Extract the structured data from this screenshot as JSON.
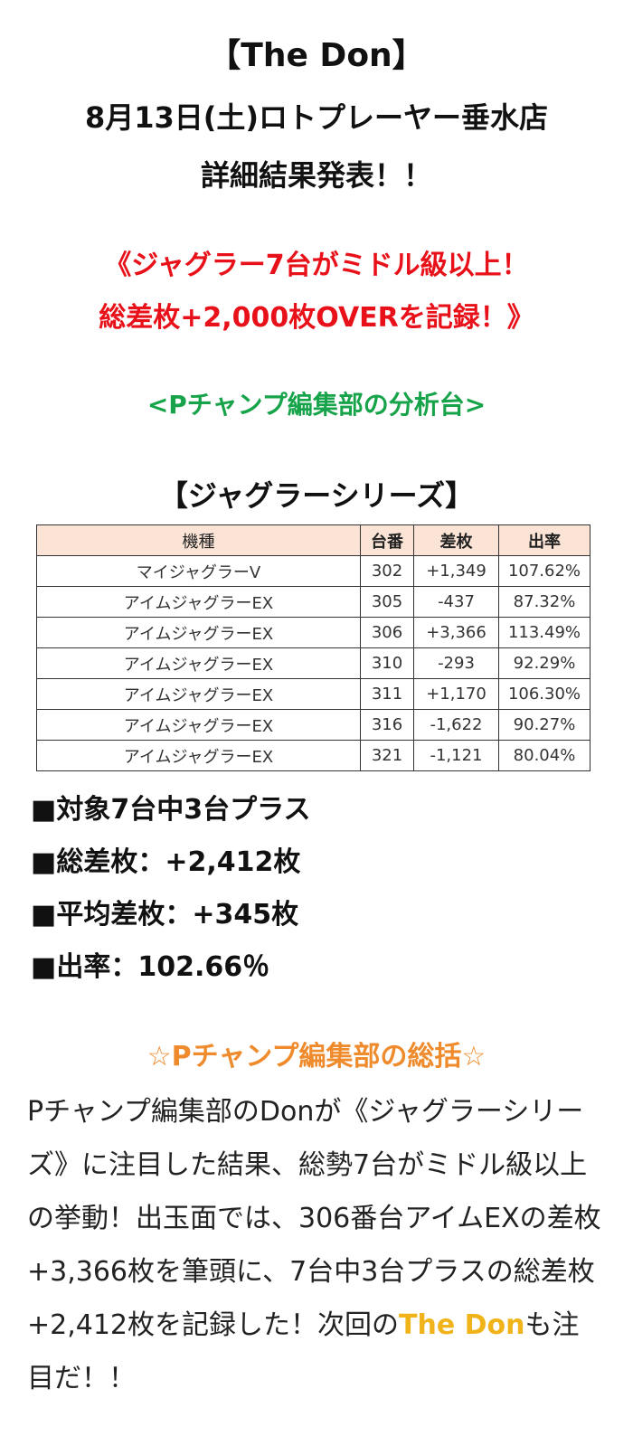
{
  "header": {
    "title": "【The Don】",
    "date_store": "8月13日(土)ロトプレーヤー垂水店",
    "announcement": "詳細結果発表！！"
  },
  "headline": {
    "line1": "《ジャグラー7台がミドル級以上！",
    "line2": "総差枚+2,000枚OVERを記録！》"
  },
  "analysis_label": "<Pチャンプ編集部の分析台>",
  "series_title": "【ジャグラーシリーズ】",
  "table": {
    "headers": [
      "機種",
      "台番",
      "差枚",
      "出率"
    ],
    "rows": [
      [
        "マイジャグラーⅤ",
        "302",
        "+1,349",
        "107.62%"
      ],
      [
        "アイムジャグラーEX",
        "305",
        "-437",
        "87.32%"
      ],
      [
        "アイムジャグラーEX",
        "306",
        "+3,366",
        "113.49%"
      ],
      [
        "アイムジャグラーEX",
        "310",
        "-293",
        "92.29%"
      ],
      [
        "アイムジャグラーEX",
        "311",
        "+1,170",
        "106.30%"
      ],
      [
        "アイムジャグラーEX",
        "316",
        "-1,622",
        "90.27%"
      ],
      [
        "アイムジャグラーEX",
        "321",
        "-1,121",
        "80.04%"
      ]
    ]
  },
  "summary": {
    "line1": "■対象7台中3台プラス",
    "line2": "■総差枚：+2,412枚",
    "line3": "■平均差枚：+345枚",
    "line4": "■出率：102.66％"
  },
  "review": {
    "title": "☆Pチャンプ編集部の総括☆",
    "body": "Pチャンプ編集部のDonが《ジャグラーシリーズ》に注目した結果、総勢7台がミドル級以上の挙動！出玉面では、306番台アイムEXの差枚+3,366枚を筆頭に、7台中3台プラスの総差枚+2,412枚を記録した！次回の",
    "highlight": "The Don",
    "tail": "も注目だ！！"
  }
}
